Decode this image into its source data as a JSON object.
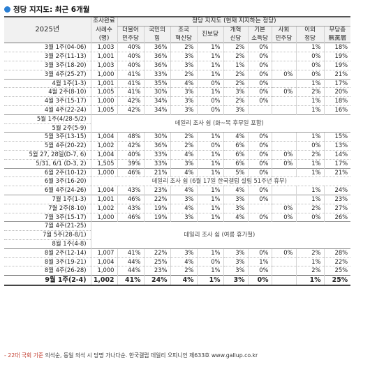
{
  "title": "정당 지지도: 최근 6개월",
  "header": {
    "year": "2025년",
    "survey_done_1": "조사완료",
    "survey_done_2": "사례수",
    "survey_done_3": "(명)",
    "group_title": "정당 지지도 (현재 지지하는 정당)",
    "parties": [
      [
        "더불어",
        "민주당"
      ],
      [
        "국민의",
        "힘"
      ],
      [
        "조국",
        "혁신당"
      ],
      [
        "진보당",
        ""
      ],
      [
        "개혁",
        "신당"
      ],
      [
        "기본",
        "소득당"
      ],
      [
        "사회",
        "민주당"
      ],
      [
        "이외",
        "정당"
      ],
      [
        "무당층",
        "無黨層"
      ]
    ]
  },
  "rows": [
    {
      "period": "3월 1주(04-06)",
      "cells": [
        "1,003",
        "40%",
        "36%",
        "2%",
        "1%",
        "2%",
        "0%",
        "",
        "1%",
        "18%"
      ]
    },
    {
      "period": "3월 2주(11-13)",
      "cells": [
        "1,001",
        "40%",
        "36%",
        "3%",
        "1%",
        "2%",
        "0%",
        "",
        "0%",
        "19%"
      ]
    },
    {
      "period": "3월 3주(18-20)",
      "cells": [
        "1,003",
        "40%",
        "36%",
        "3%",
        "1%",
        "1%",
        "0%",
        "",
        "0%",
        "19%"
      ]
    },
    {
      "period": "3월 4주(25-27)",
      "cells": [
        "1,000",
        "41%",
        "33%",
        "2%",
        "1%",
        "2%",
        "0%",
        "0%",
        "0%",
        "21%"
      ]
    },
    {
      "period": "4월 1주(1-3)",
      "cells": [
        "1,001",
        "41%",
        "35%",
        "4%",
        "0%",
        "2%",
        "0%",
        "",
        "1%",
        "17%"
      ]
    },
    {
      "period": "4월 2주(8-10)",
      "cells": [
        "1,005",
        "41%",
        "30%",
        "3%",
        "1%",
        "3%",
        "0%",
        "0%",
        "2%",
        "20%"
      ]
    },
    {
      "period": "4월 3주(15-17)",
      "cells": [
        "1,000",
        "42%",
        "34%",
        "3%",
        "0%",
        "2%",
        "0%",
        "",
        "1%",
        "18%"
      ]
    },
    {
      "period": "4월 4주(22-24)",
      "cells": [
        "1,005",
        "42%",
        "34%",
        "3%",
        "0%",
        "3%",
        "",
        "",
        "1%",
        "16%"
      ]
    },
    {
      "period": "5월 1주(4/28-5/2)",
      "note": "데일리 조사 쉼 (화~목 후무일 포함)"
    },
    {
      "period": "5월 2주(5-9)"
    },
    {
      "period": "5월 3주(13-15)",
      "cells": [
        "1,004",
        "48%",
        "30%",
        "2%",
        "1%",
        "4%",
        "0%",
        "",
        "1%",
        "15%"
      ]
    },
    {
      "period": "5월 4주(20-22)",
      "cells": [
        "1,002",
        "42%",
        "36%",
        "2%",
        "0%",
        "6%",
        "0%",
        "",
        "0%",
        "13%"
      ]
    },
    {
      "period": "5월 27, 28일(D-7, 6)",
      "cells": [
        "1,004",
        "40%",
        "33%",
        "4%",
        "1%",
        "6%",
        "0%",
        "0%",
        "2%",
        "14%"
      ]
    },
    {
      "period": "5/31, 6/1 (D-3, 2)",
      "cells": [
        "1,505",
        "39%",
        "33%",
        "3%",
        "1%",
        "6%",
        "0%",
        "0%",
        "1%",
        "17%"
      ]
    },
    {
      "period": "6월 2주(10-12)",
      "cells": [
        "1,000",
        "46%",
        "21%",
        "4%",
        "1%",
        "5%",
        "0%",
        "",
        "1%",
        "21%"
      ]
    },
    {
      "period": "6월 3주(16-20)",
      "note": "데일리 조사 쉼 (6월 17일 한국갤럽 설립 51주년 휴무)"
    },
    {
      "period": "6월 4주(24-26)",
      "cells": [
        "1,004",
        "43%",
        "23%",
        "4%",
        "1%",
        "4%",
        "0%",
        "",
        "1%",
        "24%"
      ]
    },
    {
      "period": "7월 1주(1-3)",
      "cells": [
        "1,001",
        "46%",
        "22%",
        "3%",
        "1%",
        "3%",
        "0%",
        "",
        "1%",
        "23%"
      ]
    },
    {
      "period": "7월 2주(8-10)",
      "cells": [
        "1,002",
        "43%",
        "19%",
        "4%",
        "1%",
        "3%",
        "",
        "0%",
        "2%",
        "27%"
      ]
    },
    {
      "period": "7월 3주(15-17)",
      "cells": [
        "1,000",
        "46%",
        "19%",
        "3%",
        "1%",
        "4%",
        "0%",
        "0%",
        "0%",
        "26%"
      ]
    },
    {
      "period": "7월 4주(21-25)",
      "note": "데일리 조사 쉼 (여름 휴가철)"
    },
    {
      "period": "7월 5주(28-8/1)"
    },
    {
      "period": "8월 1주(4-8)"
    },
    {
      "period": "8월 2주(12-14)",
      "cells": [
        "1,007",
        "41%",
        "22%",
        "3%",
        "1%",
        "3%",
        "0%",
        "0%",
        "2%",
        "28%"
      ]
    },
    {
      "period": "8월 3주(19-21)",
      "cells": [
        "1,004",
        "44%",
        "25%",
        "4%",
        "0%",
        "3%",
        "1%",
        "",
        "1%",
        "22%"
      ]
    },
    {
      "period": "8월 4주(26-28)",
      "cells": [
        "1,000",
        "44%",
        "23%",
        "2%",
        "1%",
        "3%",
        "0%",
        "",
        "2%",
        "25%"
      ]
    },
    {
      "period": "9월 1주(2-4)",
      "cells": [
        "1,002",
        "41%",
        "24%",
        "4%",
        "1%",
        "3%",
        "0%",
        "",
        "1%",
        "25%"
      ]
    }
  ],
  "footer": {
    "red": "- 22대 국회 기준",
    "rest": " 의석순, 동일 의석 시 당명 가나다순. 한국갤럽 데일리 오피니언 제633호 www.gallup.co.kr"
  },
  "colors": {
    "accent": "#2a7fd4",
    "footer_red": "#c0392b"
  }
}
